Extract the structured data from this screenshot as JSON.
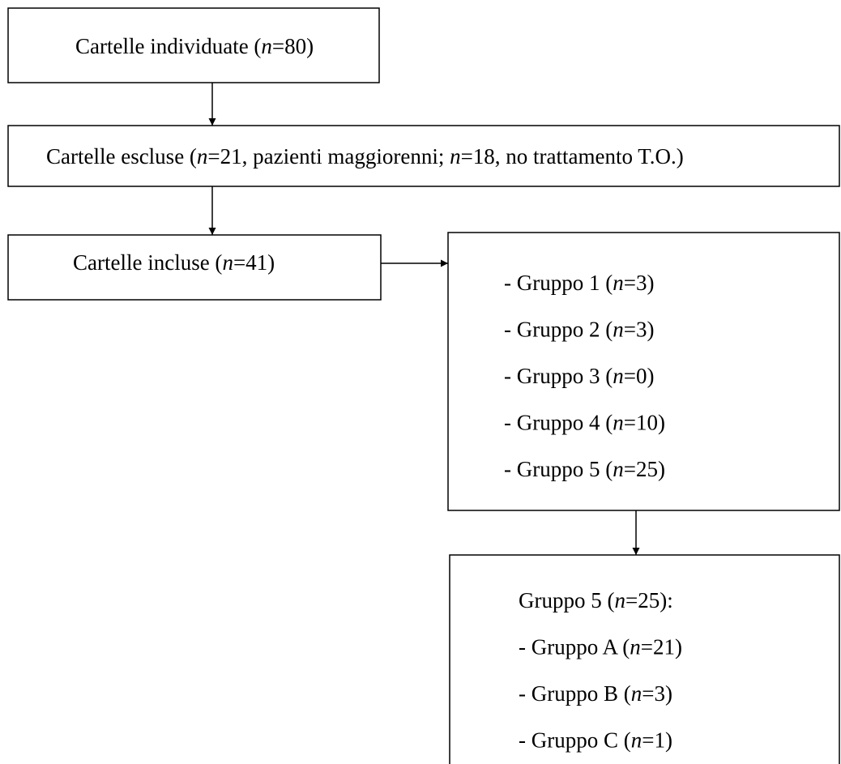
{
  "nodes": [
    {
      "lines": [
        [
          "Cartelle individuate (",
          "n",
          "=80)"
        ]
      ]
    },
    {
      "lines": [
        [
          "Cartelle escluse (",
          "n",
          "=21, pazienti maggiorenni; ",
          "n",
          "=18, no trattamento T.O.)"
        ]
      ]
    },
    {
      "lines": [
        [
          "Cartelle incluse (",
          "n",
          "=41)"
        ]
      ]
    },
    {
      "lines": [
        [
          "- Gruppo 1 (",
          "n",
          "=3)"
        ],
        [
          "- Gruppo 2 (",
          "n",
          "=3)"
        ],
        [
          "- Gruppo 3 (",
          "n",
          "=0)"
        ],
        [
          "- Gruppo 4 (",
          "n",
          "=10)"
        ],
        [
          "- Gruppo 5 (",
          "n",
          "=25)"
        ]
      ]
    },
    {
      "lines": [
        [
          "Gruppo 5 (",
          "n",
          "=25):"
        ],
        [
          "- Gruppo A (",
          "n",
          "=21)"
        ],
        [
          "- Gruppo B (",
          "n",
          "=3)"
        ],
        [
          "- Gruppo C (",
          "n",
          "=1)"
        ]
      ]
    }
  ]
}
